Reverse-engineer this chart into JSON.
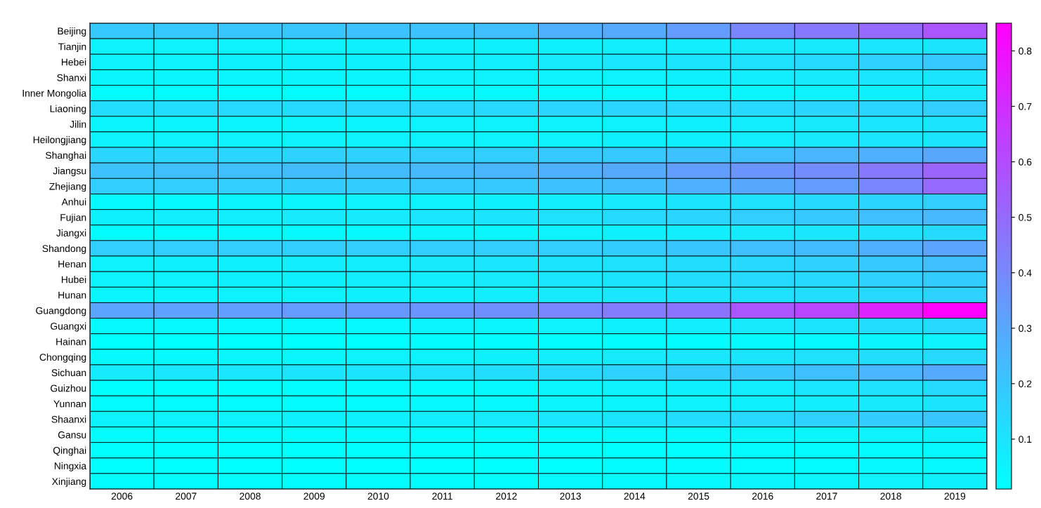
{
  "chart_data": {
    "type": "heatmap",
    "categories": [
      "2006",
      "2007",
      "2008",
      "2009",
      "2010",
      "2011",
      "2012",
      "2013",
      "2014",
      "2015",
      "2016",
      "2017",
      "2018",
      "2019"
    ],
    "y_categories": [
      "Beijing",
      "Tianjin",
      "Hebei",
      "Shanxi",
      "Inner Mongolia",
      "Liaoning",
      "Jilin",
      "Heilongjiang",
      "Shanghai",
      "Jiangsu",
      "Zhejiang",
      "Anhui",
      "Fujian",
      "Jiangxi",
      "Shandong",
      "Henan",
      "Hubei",
      "Hunan",
      "Guangdong",
      "Guangxi",
      "Hainan",
      "Chongqing",
      "Sichuan",
      "Guizhou",
      "Yunnan",
      "Shaanxi",
      "Gansu",
      "Qinghai",
      "Ningxia",
      "Xinjiang"
    ],
    "cells": [
      [
        0.19,
        0.19,
        0.2,
        0.2,
        0.21,
        0.21,
        0.22,
        0.27,
        0.29,
        0.34,
        0.41,
        0.45,
        0.5,
        0.57
      ],
      [
        0.05,
        0.05,
        0.05,
        0.05,
        0.06,
        0.06,
        0.06,
        0.06,
        0.07,
        0.07,
        0.08,
        0.08,
        0.09,
        0.1
      ],
      [
        0.05,
        0.05,
        0.06,
        0.06,
        0.06,
        0.07,
        0.07,
        0.08,
        0.09,
        0.1,
        0.11,
        0.13,
        0.16,
        0.19
      ],
      [
        0.04,
        0.04,
        0.04,
        0.04,
        0.04,
        0.05,
        0.05,
        0.05,
        0.05,
        0.06,
        0.07,
        0.08,
        0.09,
        0.1
      ],
      [
        0.02,
        0.02,
        0.02,
        0.02,
        0.02,
        0.03,
        0.03,
        0.03,
        0.03,
        0.04,
        0.04,
        0.05,
        0.06,
        0.08
      ],
      [
        0.12,
        0.12,
        0.13,
        0.13,
        0.13,
        0.14,
        0.14,
        0.15,
        0.15,
        0.14,
        0.14,
        0.15,
        0.15,
        0.17
      ],
      [
        0.04,
        0.04,
        0.04,
        0.04,
        0.04,
        0.05,
        0.05,
        0.05,
        0.05,
        0.06,
        0.07,
        0.08,
        0.09,
        0.1
      ],
      [
        0.05,
        0.05,
        0.05,
        0.05,
        0.05,
        0.05,
        0.05,
        0.05,
        0.06,
        0.06,
        0.07,
        0.08,
        0.09,
        0.1
      ],
      [
        0.15,
        0.15,
        0.15,
        0.16,
        0.16,
        0.17,
        0.17,
        0.19,
        0.19,
        0.21,
        0.22,
        0.25,
        0.27,
        0.3
      ],
      [
        0.21,
        0.22,
        0.22,
        0.23,
        0.23,
        0.24,
        0.25,
        0.27,
        0.29,
        0.33,
        0.36,
        0.39,
        0.45,
        0.52
      ],
      [
        0.17,
        0.17,
        0.17,
        0.18,
        0.18,
        0.19,
        0.19,
        0.21,
        0.23,
        0.27,
        0.3,
        0.34,
        0.41,
        0.5
      ],
      [
        0.03,
        0.03,
        0.04,
        0.04,
        0.05,
        0.05,
        0.06,
        0.07,
        0.08,
        0.1,
        0.11,
        0.13,
        0.15,
        0.17
      ],
      [
        0.06,
        0.07,
        0.07,
        0.08,
        0.08,
        0.09,
        0.1,
        0.11,
        0.13,
        0.15,
        0.17,
        0.19,
        0.22,
        0.24
      ],
      [
        0.02,
        0.02,
        0.03,
        0.03,
        0.03,
        0.04,
        0.04,
        0.05,
        0.06,
        0.07,
        0.08,
        0.09,
        0.11,
        0.13
      ],
      [
        0.17,
        0.17,
        0.17,
        0.17,
        0.17,
        0.17,
        0.17,
        0.17,
        0.18,
        0.2,
        0.22,
        0.23,
        0.27,
        0.31
      ],
      [
        0.05,
        0.06,
        0.06,
        0.07,
        0.07,
        0.08,
        0.09,
        0.1,
        0.11,
        0.12,
        0.14,
        0.16,
        0.19,
        0.22
      ],
      [
        0.05,
        0.05,
        0.06,
        0.06,
        0.07,
        0.07,
        0.08,
        0.09,
        0.1,
        0.12,
        0.13,
        0.14,
        0.16,
        0.18
      ],
      [
        0.04,
        0.04,
        0.05,
        0.05,
        0.06,
        0.06,
        0.07,
        0.08,
        0.09,
        0.1,
        0.11,
        0.12,
        0.14,
        0.16
      ],
      [
        0.31,
        0.32,
        0.33,
        0.34,
        0.35,
        0.36,
        0.38,
        0.41,
        0.44,
        0.47,
        0.57,
        0.62,
        0.73,
        0.85
      ],
      [
        0.03,
        0.03,
        0.03,
        0.03,
        0.03,
        0.04,
        0.04,
        0.05,
        0.06,
        0.07,
        0.08,
        0.1,
        0.12,
        0.14
      ],
      [
        0.01,
        0.01,
        0.01,
        0.01,
        0.01,
        0.02,
        0.02,
        0.02,
        0.02,
        0.02,
        0.03,
        0.03,
        0.04,
        0.05
      ],
      [
        0.03,
        0.03,
        0.04,
        0.04,
        0.05,
        0.05,
        0.06,
        0.07,
        0.08,
        0.09,
        0.1,
        0.11,
        0.12,
        0.14
      ],
      [
        0.08,
        0.09,
        0.09,
        0.1,
        0.1,
        0.11,
        0.12,
        0.14,
        0.16,
        0.18,
        0.2,
        0.22,
        0.25,
        0.29
      ],
      [
        0.01,
        0.01,
        0.01,
        0.02,
        0.02,
        0.02,
        0.03,
        0.04,
        0.05,
        0.06,
        0.07,
        0.09,
        0.11,
        0.13
      ],
      [
        0.02,
        0.02,
        0.02,
        0.02,
        0.02,
        0.03,
        0.03,
        0.04,
        0.04,
        0.05,
        0.06,
        0.07,
        0.08,
        0.1
      ],
      [
        0.05,
        0.05,
        0.05,
        0.06,
        0.06,
        0.07,
        0.08,
        0.09,
        0.1,
        0.12,
        0.14,
        0.16,
        0.18,
        0.2
      ],
      [
        0.02,
        0.02,
        0.02,
        0.02,
        0.02,
        0.02,
        0.02,
        0.02,
        0.03,
        0.03,
        0.04,
        0.04,
        0.05,
        0.06
      ],
      [
        0.01,
        0.01,
        0.01,
        0.01,
        0.01,
        0.01,
        0.01,
        0.01,
        0.01,
        0.01,
        0.02,
        0.02,
        0.02,
        0.03
      ],
      [
        0.01,
        0.01,
        0.01,
        0.01,
        0.01,
        0.01,
        0.01,
        0.01,
        0.02,
        0.02,
        0.02,
        0.02,
        0.03,
        0.03
      ],
      [
        0.02,
        0.02,
        0.02,
        0.02,
        0.02,
        0.02,
        0.02,
        0.03,
        0.03,
        0.03,
        0.04,
        0.04,
        0.05,
        0.06
      ]
    ],
    "clim": [
      0.01,
      0.85
    ],
    "cticks": [
      0.1,
      0.2,
      0.3,
      0.4,
      0.5,
      0.6,
      0.7,
      0.8
    ]
  }
}
